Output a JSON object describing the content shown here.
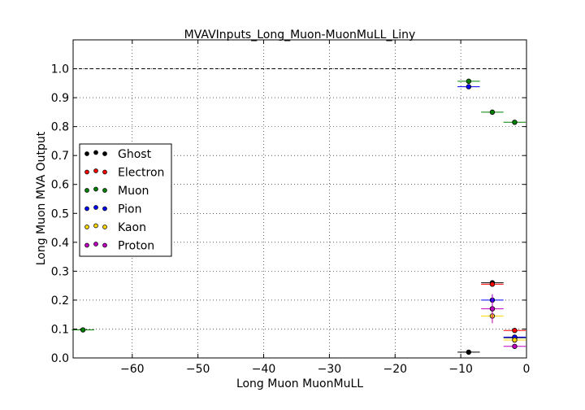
{
  "chart_data": {
    "type": "scatter",
    "title": "MVAVInputs_Long_Muon-MuonMuLL_Liny",
    "xlabel": "Long Muon MuonMuLL",
    "ylabel": "Long Muon MVA Output",
    "xlim": [
      -69,
      0
    ],
    "ylim": [
      0,
      1.1
    ],
    "x_ticks": [
      -60,
      -50,
      -40,
      -30,
      -20,
      -10,
      0
    ],
    "x_tick_labels": [
      "−60",
      "−50",
      "−40",
      "−30",
      "−20",
      "−10",
      "0"
    ],
    "y_ticks": [
      0.0,
      0.1,
      0.2,
      0.3,
      0.4,
      0.5,
      0.6,
      0.7,
      0.8,
      0.9,
      1.0
    ],
    "y_tick_labels": [
      "0.0",
      "0.1",
      "0.2",
      "0.3",
      "0.4",
      "0.5",
      "0.6",
      "0.7",
      "0.8",
      "0.9",
      "1.0"
    ],
    "grid": true,
    "reference_line_y": 1.0,
    "legend_position": "center-left",
    "series": [
      {
        "name": "Ghost",
        "color": "#000000",
        "points": [
          {
            "x": -8.8,
            "y": 0.02,
            "xerr": 1.7,
            "yerr": 0.003
          },
          {
            "x": -5.2,
            "y": 0.26,
            "xerr": 1.7,
            "yerr": 0.005
          },
          {
            "x": -1.8,
            "y": 0.07,
            "xerr": 1.7,
            "yerr": 0.005
          }
        ]
      },
      {
        "name": "Electron",
        "color": "#ff0000",
        "points": [
          {
            "x": -5.2,
            "y": 0.255,
            "xerr": 1.7,
            "yerr": 0.005
          },
          {
            "x": -1.8,
            "y": 0.095,
            "xerr": 1.7,
            "yerr": 0.005
          }
        ]
      },
      {
        "name": "Muon",
        "color": "#008000",
        "points": [
          {
            "x": -67.5,
            "y": 0.097,
            "xerr": 1.7,
            "yerr": 0.003
          },
          {
            "x": -8.8,
            "y": 0.957,
            "xerr": 1.7,
            "yerr": 0.003
          },
          {
            "x": -5.2,
            "y": 0.85,
            "xerr": 1.7,
            "yerr": 0.003
          },
          {
            "x": -1.8,
            "y": 0.815,
            "xerr": 1.7,
            "yerr": 0.003
          }
        ]
      },
      {
        "name": "Pion",
        "color": "#0000ff",
        "points": [
          {
            "x": -8.8,
            "y": 0.938,
            "xerr": 1.7,
            "yerr": 0.005
          },
          {
            "x": -5.2,
            "y": 0.2,
            "xerr": 1.7,
            "yerr": 0.02
          },
          {
            "x": -1.8,
            "y": 0.072,
            "xerr": 1.7,
            "yerr": 0.005
          }
        ]
      },
      {
        "name": "Kaon",
        "color": "#ffd700",
        "points": [
          {
            "x": -5.2,
            "y": 0.145,
            "xerr": 1.7,
            "yerr": 0.025
          },
          {
            "x": -1.8,
            "y": 0.062,
            "xerr": 1.7,
            "yerr": 0.005
          }
        ]
      },
      {
        "name": "Proton",
        "color": "#c000c0",
        "points": [
          {
            "x": -5.2,
            "y": 0.17,
            "xerr": 1.7,
            "yerr": 0.05
          },
          {
            "x": -1.8,
            "y": 0.04,
            "xerr": 1.7,
            "yerr": 0.005
          }
        ]
      }
    ]
  }
}
